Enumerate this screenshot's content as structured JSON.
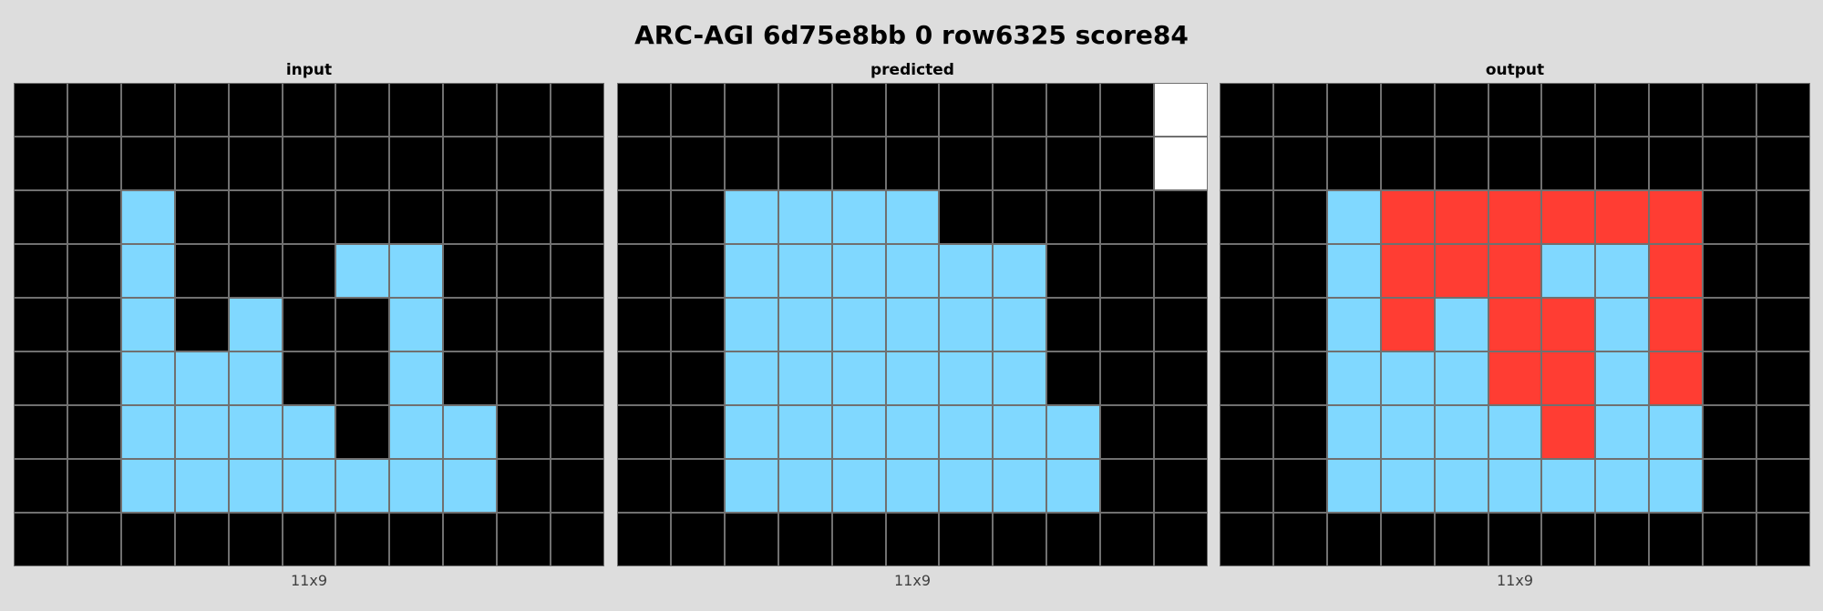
{
  "title": "ARC-AGI 6d75e8bb 0 row6325 score84",
  "palette": {
    "0": "#000000",
    "1": "#80d8ff",
    "2": "#ff3d33",
    "3": "#ffffff"
  },
  "panels": [
    {
      "label": "input",
      "dims": "11x9",
      "grid": [
        [
          0,
          0,
          0,
          0,
          0,
          0,
          0,
          0,
          0,
          0,
          0
        ],
        [
          0,
          0,
          0,
          0,
          0,
          0,
          0,
          0,
          0,
          0,
          0
        ],
        [
          0,
          0,
          1,
          0,
          0,
          0,
          0,
          0,
          0,
          0,
          0
        ],
        [
          0,
          0,
          1,
          0,
          0,
          0,
          1,
          1,
          0,
          0,
          0
        ],
        [
          0,
          0,
          1,
          0,
          1,
          0,
          0,
          1,
          0,
          0,
          0
        ],
        [
          0,
          0,
          1,
          1,
          1,
          0,
          0,
          1,
          0,
          0,
          0
        ],
        [
          0,
          0,
          1,
          1,
          1,
          1,
          0,
          1,
          1,
          0,
          0
        ],
        [
          0,
          0,
          1,
          1,
          1,
          1,
          1,
          1,
          1,
          0,
          0
        ],
        [
          0,
          0,
          0,
          0,
          0,
          0,
          0,
          0,
          0,
          0,
          0
        ]
      ]
    },
    {
      "label": "predicted",
      "dims": "11x9",
      "grid": [
        [
          0,
          0,
          0,
          0,
          0,
          0,
          0,
          0,
          0,
          0,
          3
        ],
        [
          0,
          0,
          0,
          0,
          0,
          0,
          0,
          0,
          0,
          0,
          3
        ],
        [
          0,
          0,
          1,
          1,
          1,
          1,
          0,
          0,
          0,
          0,
          0
        ],
        [
          0,
          0,
          1,
          1,
          1,
          1,
          1,
          1,
          0,
          0,
          0
        ],
        [
          0,
          0,
          1,
          1,
          1,
          1,
          1,
          1,
          0,
          0,
          0
        ],
        [
          0,
          0,
          1,
          1,
          1,
          1,
          1,
          1,
          0,
          0,
          0
        ],
        [
          0,
          0,
          1,
          1,
          1,
          1,
          1,
          1,
          1,
          0,
          0
        ],
        [
          0,
          0,
          1,
          1,
          1,
          1,
          1,
          1,
          1,
          0,
          0
        ],
        [
          0,
          0,
          0,
          0,
          0,
          0,
          0,
          0,
          0,
          0,
          0
        ]
      ]
    },
    {
      "label": "output",
      "dims": "11x9",
      "grid": [
        [
          0,
          0,
          0,
          0,
          0,
          0,
          0,
          0,
          0,
          0,
          0
        ],
        [
          0,
          0,
          0,
          0,
          0,
          0,
          0,
          0,
          0,
          0,
          0
        ],
        [
          0,
          0,
          1,
          2,
          2,
          2,
          2,
          2,
          2,
          0,
          0
        ],
        [
          0,
          0,
          1,
          2,
          2,
          2,
          1,
          1,
          2,
          0,
          0
        ],
        [
          0,
          0,
          1,
          2,
          1,
          2,
          2,
          1,
          2,
          0,
          0
        ],
        [
          0,
          0,
          1,
          1,
          1,
          2,
          2,
          1,
          2,
          0,
          0
        ],
        [
          0,
          0,
          1,
          1,
          1,
          1,
          2,
          1,
          1,
          0,
          0
        ],
        [
          0,
          0,
          1,
          1,
          1,
          1,
          1,
          1,
          1,
          0,
          0
        ],
        [
          0,
          0,
          0,
          0,
          0,
          0,
          0,
          0,
          0,
          0,
          0
        ]
      ]
    }
  ]
}
